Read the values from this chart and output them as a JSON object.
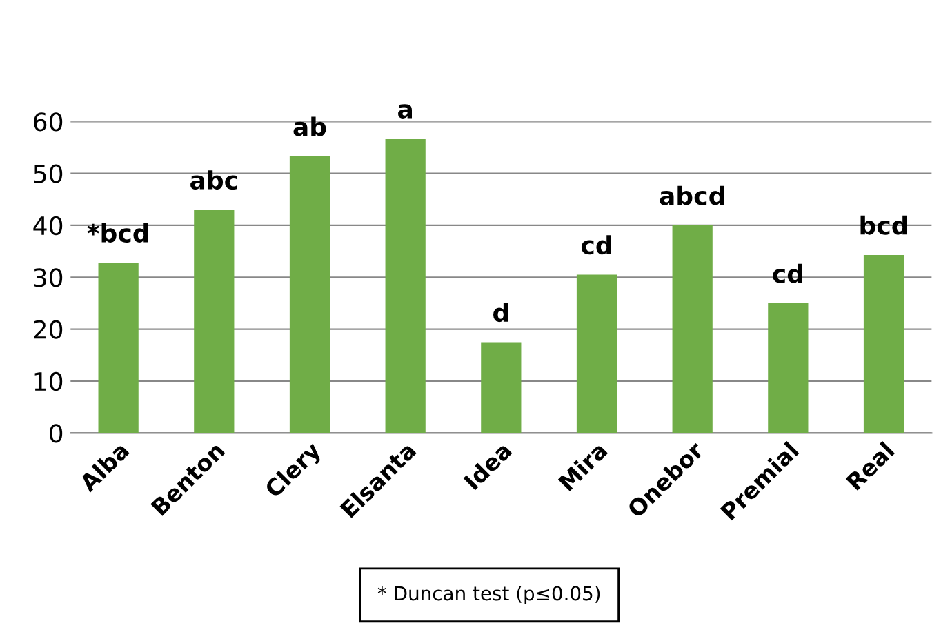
{
  "chart_data": {
    "type": "bar",
    "categories": [
      "Alba",
      "Benton",
      "Clery",
      "Elsanta",
      "Idea",
      "Mira",
      "Onebor",
      "Premial",
      "Real"
    ],
    "values": [
      32.8,
      43,
      53.3,
      56.7,
      17.5,
      30.5,
      40,
      25,
      34.3
    ],
    "value_labels": [
      "*bcd",
      "abc",
      "ab",
      "a",
      "d",
      "cd",
      "abcd",
      "cd",
      "bcd"
    ],
    "color": "#70ad47",
    "ylim": [
      0,
      60
    ],
    "yticks": [
      0,
      10,
      20,
      30,
      40,
      50,
      60
    ],
    "grid": "y",
    "annotations": [
      "* Duncan test (p≤0.05)"
    ]
  }
}
